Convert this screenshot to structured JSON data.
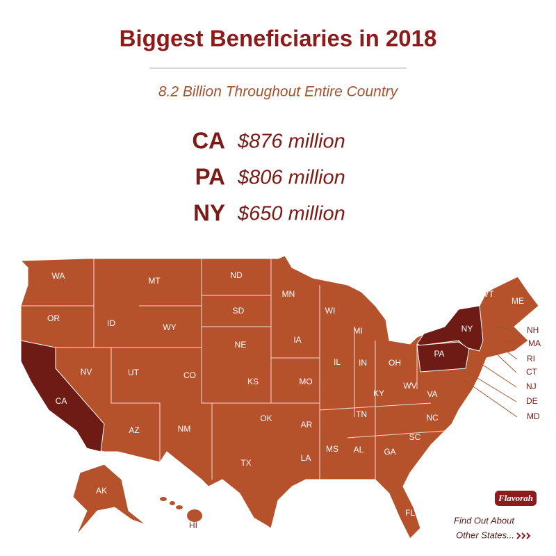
{
  "header": {
    "title": "Biggest Beneficiaries in 2018",
    "subtitle": "8.2 Billion Throughout Entire Country"
  },
  "leaders": [
    {
      "state": "CA",
      "amount": "$876 million"
    },
    {
      "state": "PA",
      "amount": "$806 million"
    },
    {
      "state": "NY",
      "amount": "$650 million"
    }
  ],
  "map": {
    "states": [
      "WA",
      "MT",
      "ND",
      "MN",
      "WI",
      "MI",
      "VT",
      "ME",
      "NH",
      "MA",
      "RI",
      "CT",
      "NJ",
      "DE",
      "MD",
      "NY",
      "PA",
      "OH",
      "IN",
      "IL",
      "IA",
      "NE",
      "SD",
      "WY",
      "ID",
      "OR",
      "NV",
      "UT",
      "CO",
      "KS",
      "MO",
      "KY",
      "WV",
      "VA",
      "NC",
      "TN",
      "AR",
      "OK",
      "SC",
      "GA",
      "AL",
      "MS",
      "LA",
      "TX",
      "AZ",
      "NM",
      "CA",
      "AK",
      "HI",
      "FL"
    ]
  },
  "footer": {
    "logo": "Flavorah",
    "line1": "Find Out About",
    "line2": "Other States..."
  }
}
